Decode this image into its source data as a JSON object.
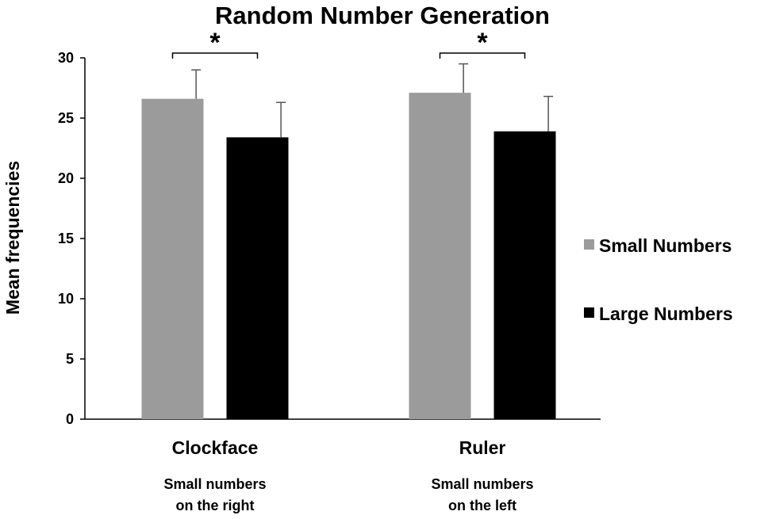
{
  "chart_data": {
    "type": "bar",
    "title": "Random Number Generation",
    "xlabel": "",
    "ylabel": "Mean frequencies",
    "ylim": [
      0,
      30
    ],
    "yticks": [
      "0",
      "5",
      "10",
      "15",
      "20",
      "25",
      "30"
    ],
    "categories": [
      "Clockface",
      "Ruler"
    ],
    "category_sublabels": [
      [
        "Small numbers",
        "on the right"
      ],
      [
        "Small numbers",
        "on the left"
      ]
    ],
    "series": [
      {
        "name": "Small Numbers",
        "color": "#9b9b9b",
        "values": [
          26.6,
          27.1
        ],
        "errors": [
          2.4,
          2.4
        ]
      },
      {
        "name": "Large Numbers",
        "color": "#000000",
        "values": [
          23.4,
          23.9
        ],
        "errors": [
          2.9,
          2.9
        ]
      }
    ],
    "significance_marks": [
      "*",
      "*"
    ],
    "grid": false,
    "legend_position": "right"
  }
}
